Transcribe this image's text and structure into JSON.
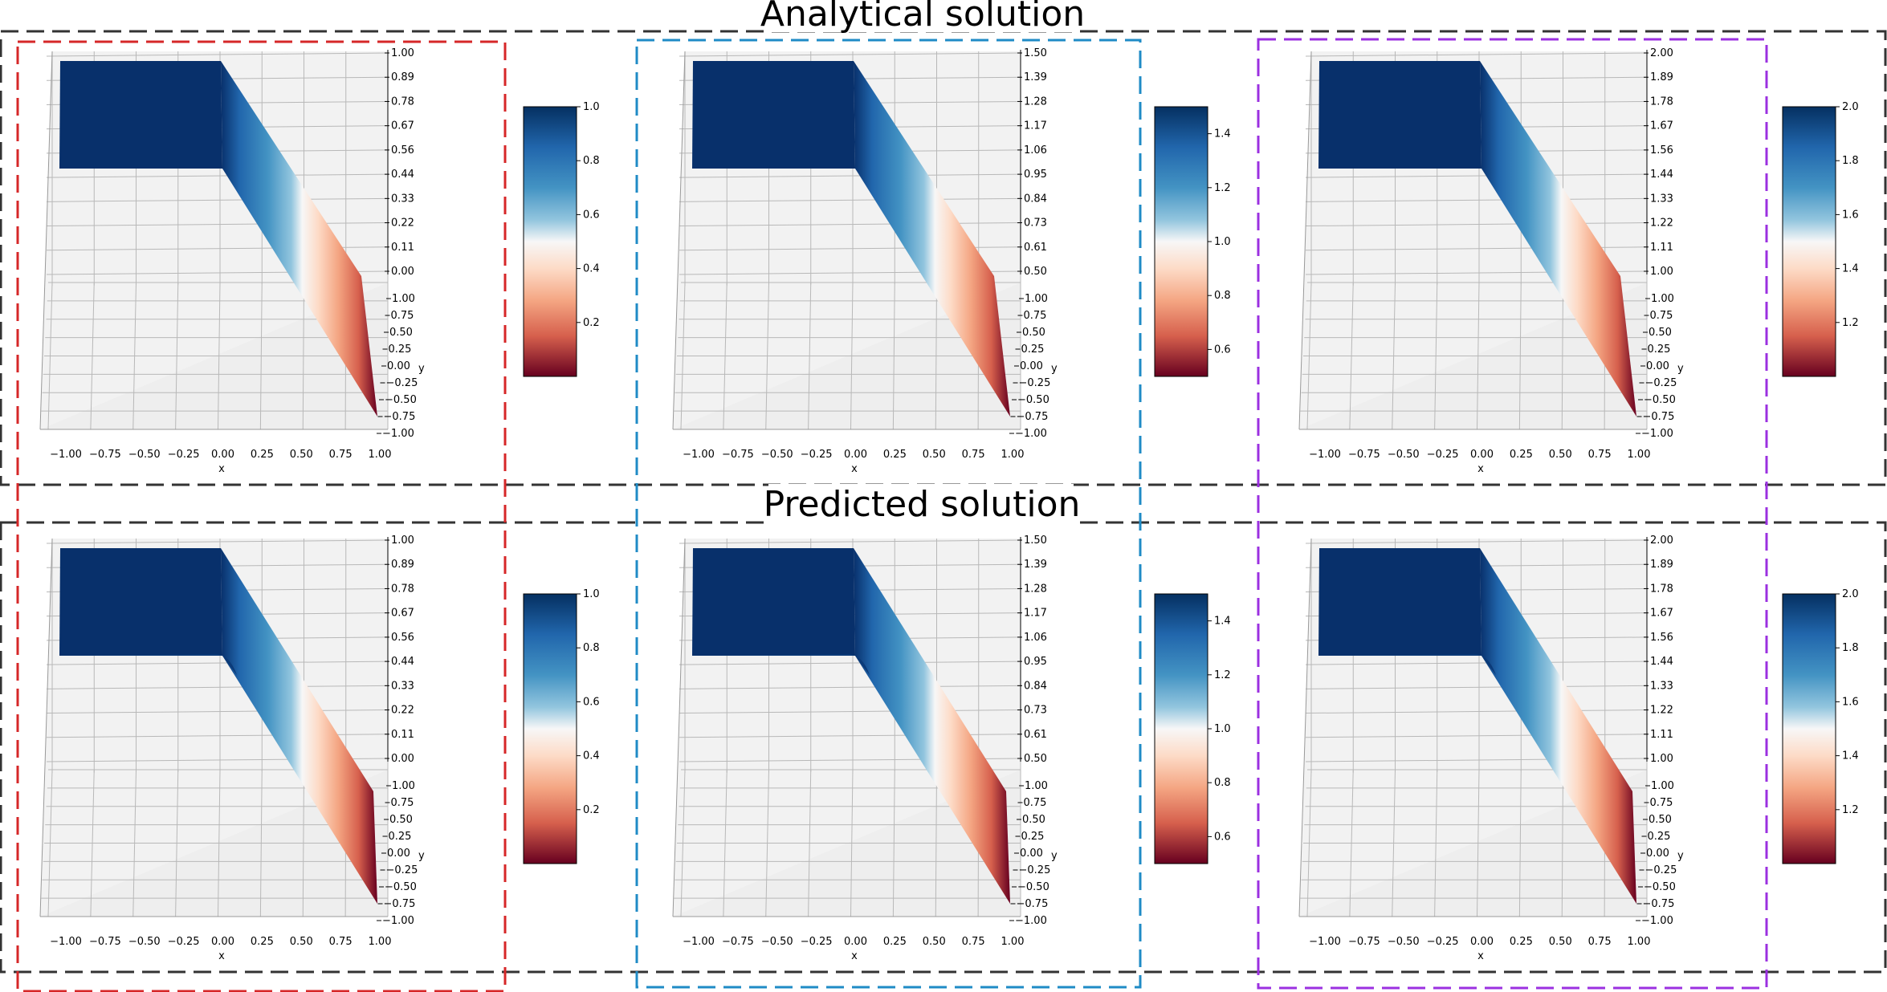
{
  "titles": {
    "analytical": "Analytical solution",
    "predicted": "Predicted solution"
  },
  "colors": {
    "row_frame": "#333333",
    "column_frames": [
      "#d62728",
      "#1f8bc6",
      "#9b30e0"
    ],
    "surface_high": "#08306b",
    "surface_mid": "#f7f7f7",
    "surface_low": "#67001f",
    "pane": "#f2f2f2"
  },
  "chart_data": [
    {
      "type": "surface3d",
      "row": "Analytical solution",
      "column": 1,
      "xlabel": "x",
      "ylabel": "y",
      "x_ticks": [
        "−1.00",
        "−0.75",
        "−0.50",
        "−0.25",
        "0.00",
        "0.25",
        "0.50",
        "0.75",
        "1.00"
      ],
      "y_ticks": [
        "1.00",
        "0.75",
        "0.50",
        "0.25",
        "0.00",
        "−0.25",
        "−0.50",
        "−0.75",
        "−1.00"
      ],
      "z_ticks": [
        "1.00",
        "0.89",
        "0.78",
        "0.67",
        "0.56",
        "0.44",
        "0.33",
        "0.22",
        "0.11",
        "0.00"
      ],
      "zlim": [
        0.0,
        1.0
      ],
      "colorbar": {
        "range": [
          0.0,
          1.0
        ],
        "ticks": [
          "1.0",
          "0.8",
          "0.6",
          "0.4",
          "0.2"
        ]
      },
      "surface": {
        "plateau_value": 1.0,
        "plateau_x": [
          -1.0,
          0.0
        ],
        "ramp_x": [
          0.0,
          1.0
        ],
        "end_value": 0.0,
        "smooth": false
      }
    },
    {
      "type": "surface3d",
      "row": "Analytical solution",
      "column": 2,
      "xlabel": "x",
      "ylabel": "y",
      "x_ticks": [
        "−1.00",
        "−0.75",
        "−0.50",
        "−0.25",
        "0.00",
        "0.25",
        "0.50",
        "0.75",
        "1.00"
      ],
      "y_ticks": [
        "1.00",
        "0.75",
        "0.50",
        "0.25",
        "0.00",
        "−0.25",
        "−0.50",
        "−0.75",
        "−1.00"
      ],
      "z_ticks": [
        "1.50",
        "1.39",
        "1.28",
        "1.17",
        "1.06",
        "0.95",
        "0.84",
        "0.73",
        "0.61",
        "0.50"
      ],
      "zlim": [
        0.5,
        1.5
      ],
      "colorbar": {
        "range": [
          0.5,
          1.5
        ],
        "ticks": [
          "1.4",
          "1.2",
          "1.0",
          "0.8",
          "0.6"
        ]
      },
      "surface": {
        "plateau_value": 1.5,
        "plateau_x": [
          -1.0,
          0.0
        ],
        "ramp_x": [
          0.0,
          1.0
        ],
        "end_value": 0.5,
        "smooth": false
      }
    },
    {
      "type": "surface3d",
      "row": "Analytical solution",
      "column": 3,
      "xlabel": "x",
      "ylabel": "y",
      "x_ticks": [
        "−1.00",
        "−0.75",
        "−0.50",
        "−0.25",
        "0.00",
        "0.25",
        "0.50",
        "0.75",
        "1.00"
      ],
      "y_ticks": [
        "1.00",
        "0.75",
        "0.50",
        "0.25",
        "0.00",
        "−0.25",
        "−0.50",
        "−0.75",
        "−1.00"
      ],
      "z_ticks": [
        "2.00",
        "1.89",
        "1.78",
        "1.67",
        "1.56",
        "1.44",
        "1.33",
        "1.22",
        "1.11",
        "1.00"
      ],
      "zlim": [
        1.0,
        2.0
      ],
      "colorbar": {
        "range": [
          1.0,
          2.0
        ],
        "ticks": [
          "2.0",
          "1.8",
          "1.6",
          "1.4",
          "1.2"
        ]
      },
      "surface": {
        "plateau_value": 2.0,
        "plateau_x": [
          -1.0,
          0.0
        ],
        "ramp_x": [
          0.0,
          1.0
        ],
        "end_value": 1.0,
        "smooth": false
      }
    },
    {
      "type": "surface3d",
      "row": "Predicted solution",
      "column": 1,
      "xlabel": "x",
      "ylabel": "y",
      "x_ticks": [
        "−1.00",
        "−0.75",
        "−0.50",
        "−0.25",
        "0.00",
        "0.25",
        "0.50",
        "0.75",
        "1.00"
      ],
      "y_ticks": [
        "1.00",
        "0.75",
        "0.50",
        "0.25",
        "0.00",
        "−0.25",
        "−0.50",
        "−0.75",
        "−1.00"
      ],
      "z_ticks": [
        "1.00",
        "0.89",
        "0.78",
        "0.67",
        "0.56",
        "0.44",
        "0.33",
        "0.22",
        "0.11",
        "0.00"
      ],
      "zlim": [
        0.0,
        1.0
      ],
      "colorbar": {
        "range": [
          0.0,
          1.0
        ],
        "ticks": [
          "1.0",
          "0.8",
          "0.6",
          "0.4",
          "0.2"
        ]
      },
      "surface": {
        "plateau_value": 1.0,
        "plateau_x": [
          -1.0,
          0.0
        ],
        "ramp_x": [
          0.0,
          1.0
        ],
        "end_value": 0.0,
        "smooth": true
      }
    },
    {
      "type": "surface3d",
      "row": "Predicted solution",
      "column": 2,
      "xlabel": "x",
      "ylabel": "y",
      "x_ticks": [
        "−1.00",
        "−0.75",
        "−0.50",
        "−0.25",
        "0.00",
        "0.25",
        "0.50",
        "0.75",
        "1.00"
      ],
      "y_ticks": [
        "1.00",
        "0.75",
        "0.50",
        "0.25",
        "0.00",
        "−0.25",
        "−0.50",
        "−0.75",
        "−1.00"
      ],
      "z_ticks": [
        "1.50",
        "1.39",
        "1.28",
        "1.17",
        "1.06",
        "0.95",
        "0.84",
        "0.73",
        "0.61",
        "0.50"
      ],
      "zlim": [
        0.5,
        1.5
      ],
      "colorbar": {
        "range": [
          0.5,
          1.5
        ],
        "ticks": [
          "1.4",
          "1.2",
          "1.0",
          "0.8",
          "0.6"
        ]
      },
      "surface": {
        "plateau_value": 1.5,
        "plateau_x": [
          -1.0,
          0.0
        ],
        "ramp_x": [
          0.0,
          1.0
        ],
        "end_value": 0.5,
        "smooth": true
      }
    },
    {
      "type": "surface3d",
      "row": "Predicted solution",
      "column": 3,
      "xlabel": "x",
      "ylabel": "y",
      "x_ticks": [
        "−1.00",
        "−0.75",
        "−0.50",
        "−0.25",
        "0.00",
        "0.25",
        "0.50",
        "0.75",
        "1.00"
      ],
      "y_ticks": [
        "1.00",
        "0.75",
        "0.50",
        "0.25",
        "0.00",
        "−0.25",
        "−0.50",
        "−0.75",
        "−1.00"
      ],
      "z_ticks": [
        "2.00",
        "1.89",
        "1.78",
        "1.67",
        "1.56",
        "1.44",
        "1.33",
        "1.22",
        "1.11",
        "1.00"
      ],
      "zlim": [
        1.0,
        2.0
      ],
      "colorbar": {
        "range": [
          1.0,
          2.0
        ],
        "ticks": [
          "2.0",
          "1.8",
          "1.6",
          "1.4",
          "1.2"
        ]
      },
      "surface": {
        "plateau_value": 2.0,
        "plateau_x": [
          -1.0,
          0.0
        ],
        "ramp_x": [
          0.0,
          1.0
        ],
        "end_value": 1.0,
        "smooth": true
      }
    }
  ]
}
